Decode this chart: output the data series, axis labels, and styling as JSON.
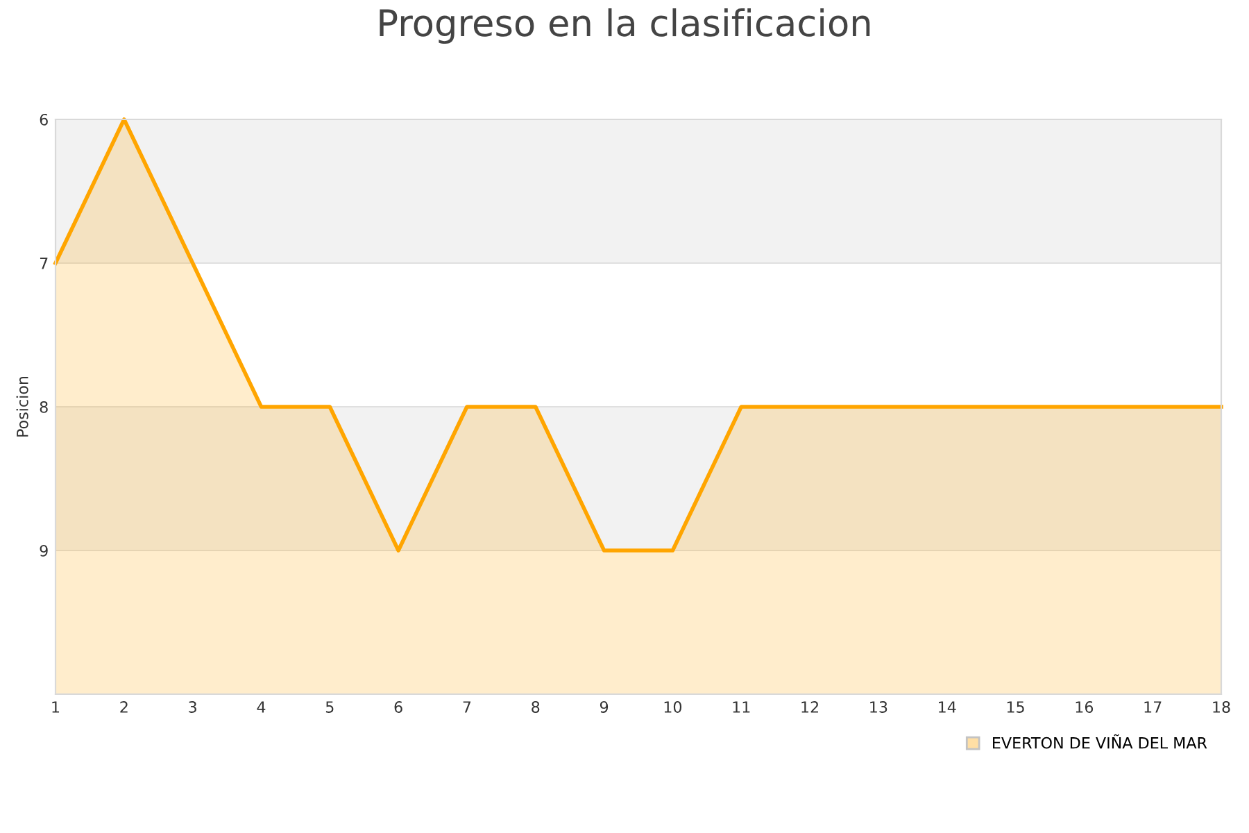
{
  "chart_data": {
    "type": "area",
    "title": "Progreso en la clasificacion",
    "ylabel": "Posicion",
    "x": [
      1,
      2,
      3,
      4,
      5,
      6,
      7,
      8,
      9,
      10,
      11,
      12,
      13,
      14,
      15,
      16,
      17,
      18
    ],
    "series": [
      {
        "name": "EVERTON DE VIÑA DEL MAR",
        "color": "#ffa500",
        "values": [
          7,
          6,
          7,
          8,
          8,
          9,
          8,
          8,
          9,
          9,
          8,
          8,
          8,
          8,
          8,
          8,
          8,
          8
        ]
      }
    ],
    "xlim": [
      1,
      18
    ],
    "xticks": [
      1,
      2,
      3,
      4,
      5,
      6,
      7,
      8,
      9,
      10,
      11,
      12,
      13,
      14,
      15,
      16,
      17,
      18
    ],
    "ylim": [
      10,
      6
    ],
    "yticks": [
      6,
      7,
      8,
      9
    ],
    "bands": [
      {
        "axis": "y",
        "from": 6,
        "to": 7,
        "color": "#f2f2f2"
      },
      {
        "axis": "y",
        "from": 8,
        "to": 9,
        "color": "#f2f2f2"
      }
    ],
    "grid": "y",
    "legend": "bottom right",
    "marker": "none",
    "line_style": "solid"
  }
}
